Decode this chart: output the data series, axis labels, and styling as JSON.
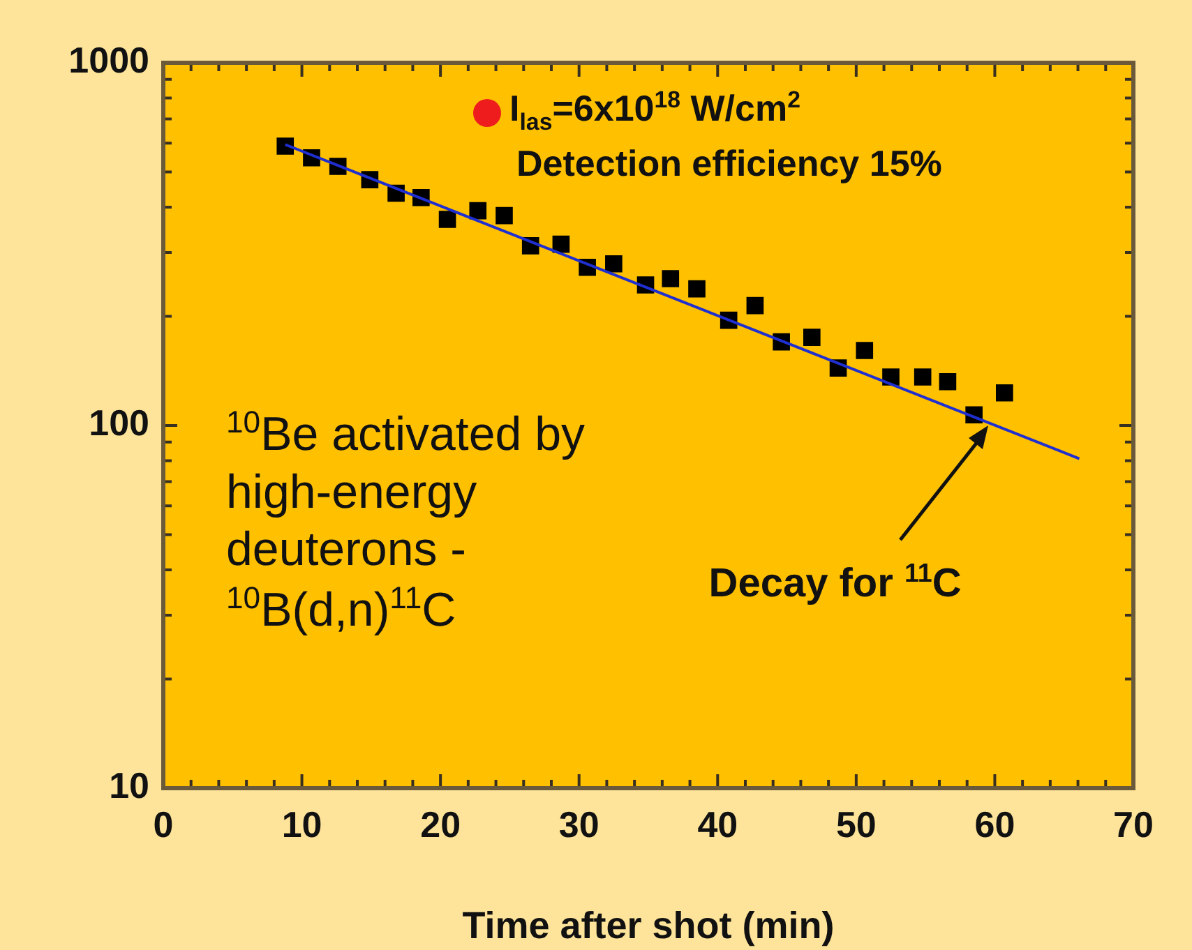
{
  "chart_data": {
    "type": "scatter",
    "xlabel": "Time after shot (min)",
    "xlim": [
      0,
      70
    ],
    "xticks": [
      0,
      {
        "value": 2,
        "label": null
      },
      {
        "value": 4,
        "label": null
      },
      {
        "value": 6,
        "label": null
      },
      {
        "value": 8,
        "label": null
      },
      10,
      {
        "value": 12,
        "label": null
      },
      {
        "value": 14,
        "label": null
      },
      {
        "value": 16,
        "label": null
      },
      {
        "value": 18,
        "label": null
      },
      20,
      {
        "value": 22,
        "label": null
      },
      {
        "value": 24,
        "label": null
      },
      {
        "value": 26,
        "label": null
      },
      {
        "value": 28,
        "label": null
      },
      30,
      {
        "value": 32,
        "label": null
      },
      {
        "value": 34,
        "label": null
      },
      {
        "value": 36,
        "label": null
      },
      {
        "value": 38,
        "label": null
      },
      40,
      {
        "value": 42,
        "label": null
      },
      {
        "value": 44,
        "label": null
      },
      {
        "value": 46,
        "label": null
      },
      {
        "value": 48,
        "label": null
      },
      50,
      {
        "value": 52,
        "label": null
      },
      {
        "value": 54,
        "label": null
      },
      {
        "value": 56,
        "label": null
      },
      {
        "value": 58,
        "label": null
      },
      60,
      {
        "value": 62,
        "label": null
      },
      {
        "value": 64,
        "label": null
      },
      {
        "value": 66,
        "label": null
      },
      {
        "value": 68,
        "label": null
      },
      70
    ],
    "ylim": [
      10,
      1000
    ],
    "yticks": [
      10,
      {
        "value": 20,
        "label": null
      },
      {
        "value": 30,
        "label": null
      },
      {
        "value": 40,
        "label": null
      },
      {
        "value": 50,
        "label": null
      },
      {
        "value": 60,
        "label": null
      },
      {
        "value": 70,
        "label": null
      },
      {
        "value": 80,
        "label": null
      },
      {
        "value": 90,
        "label": null
      },
      100,
      {
        "value": 200,
        "label": null
      },
      {
        "value": 300,
        "label": null
      },
      {
        "value": 400,
        "label": null
      },
      {
        "value": 500,
        "label": null
      },
      {
        "value": 600,
        "label": null
      },
      {
        "value": 700,
        "label": null
      },
      {
        "value": 800,
        "label": null
      },
      {
        "value": 900,
        "label": null
      },
      1000
    ],
    "log": "y",
    "grid": false,
    "legend": false,
    "marker": "square",
    "series": [
      {
        "color": "#000000",
        "x": [
          8.8,
          10.7,
          12.6,
          14.9,
          16.8,
          18.6,
          20.5,
          22.7,
          24.6,
          26.5,
          28.7,
          30.6,
          32.5,
          34.8,
          36.6,
          38.5,
          40.8,
          42.7,
          44.6,
          46.8,
          48.7,
          50.6,
          52.5,
          54.8,
          56.6,
          58.5,
          60.7
        ],
        "values": [
          589,
          547,
          518,
          476,
          437,
          425,
          370,
          391,
          379,
          313,
          316,
          273,
          279,
          244,
          254,
          238,
          195,
          214,
          170,
          175,
          144,
          161,
          136,
          136,
          132,
          107,
          123
        ]
      },
      {
        "type": "line",
        "color": "#1f2fd0",
        "marker": "none",
        "x": [
          8.8,
          66.1
        ],
        "values": [
          595,
          81
        ]
      }
    ],
    "annotations": [
      "I$_{las}$=6x10$^{18}$ W/cm$^{2}$",
      "Detection efficiency 15%",
      "$^{10}$Be activated by high-energy deuterons - $^{10}$B(d,n)$^{11}$C",
      {
        "text": "Decay for $^{11}$C",
        "x": 59.5,
        "y": 100
      }
    ]
  }
}
